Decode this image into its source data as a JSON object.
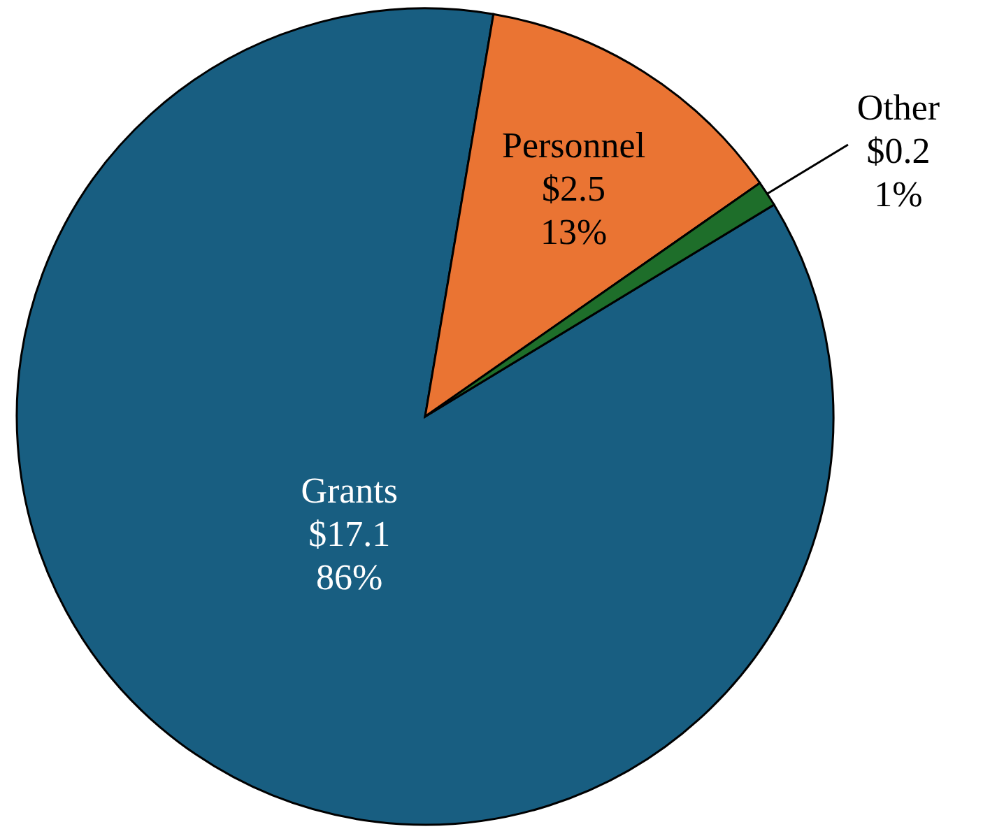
{
  "chart_data": {
    "type": "pie",
    "categories": [
      "Grants",
      "Personnel",
      "Other"
    ],
    "values": [
      17.1,
      2.5,
      0.2
    ],
    "colors": [
      "#185e81",
      "#ea7433",
      "#1e6e2a"
    ],
    "value_labels": [
      "$17.1\n86%",
      "$2.5\n13%",
      "$0.2\n1%"
    ]
  }
}
